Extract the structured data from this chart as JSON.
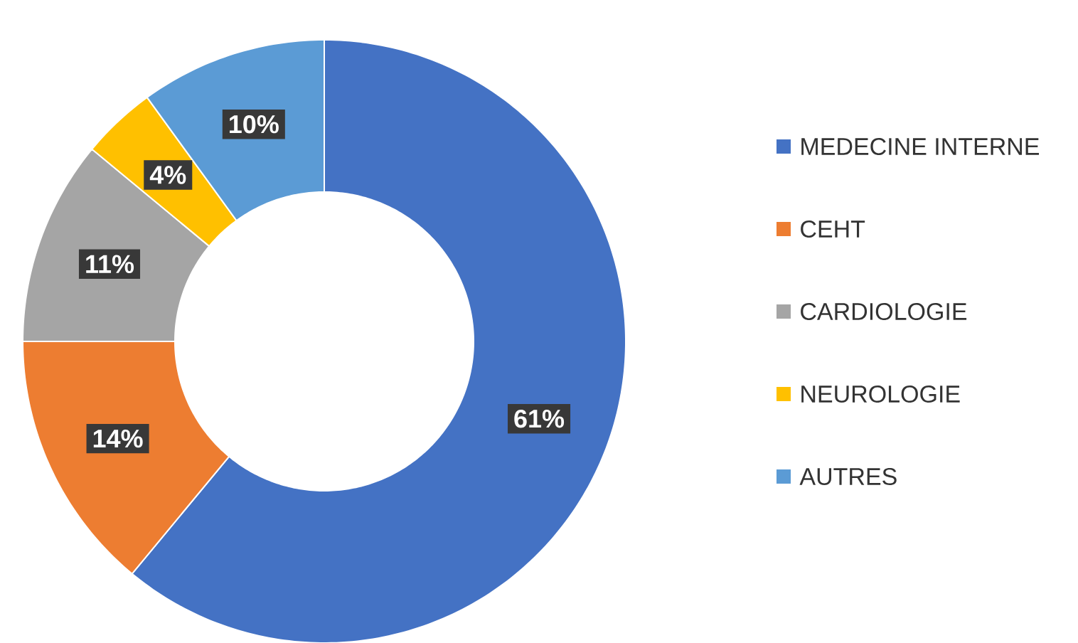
{
  "chart_data": {
    "type": "donut",
    "categories": [
      "MEDECINE INTERNE",
      "CEHT",
      "CARDIOLOGIE",
      "NEUROLOGIE",
      "AUTRES"
    ],
    "values": [
      61,
      14,
      11,
      4,
      10
    ],
    "colors": [
      "#4472c4",
      "#ed7d31",
      "#a5a5a5",
      "#ffc000",
      "#5b9bd5"
    ],
    "value_labels": [
      "61%",
      "14%",
      "11%",
      "4%",
      "10%"
    ],
    "legend": "right"
  }
}
